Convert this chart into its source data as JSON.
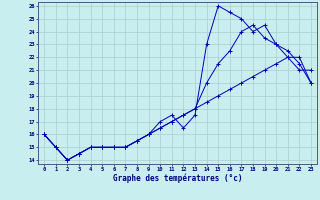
{
  "title": "Graphe des températures (°c)",
  "background_color": "#c8eef0",
  "grid_color": "#aacccc",
  "line_color": "#0000bb",
  "x_hours": [
    0,
    1,
    2,
    3,
    4,
    5,
    6,
    7,
    8,
    9,
    10,
    11,
    12,
    13,
    14,
    15,
    16,
    17,
    18,
    19,
    20,
    21,
    22,
    23
  ],
  "line1": [
    16,
    15,
    14,
    14.5,
    15,
    15,
    15,
    15,
    15.5,
    16.0,
    17.0,
    17.5,
    16.5,
    17.5,
    23.0,
    26.0,
    25.5,
    25.0,
    24.0,
    24.5,
    23.0,
    22.5,
    21.5,
    20.0
  ],
  "line2": [
    16,
    15,
    14,
    14.5,
    15,
    15,
    15,
    15,
    15.5,
    16.0,
    16.5,
    17.0,
    17.5,
    18.0,
    20.0,
    21.5,
    22.5,
    24.0,
    24.5,
    23.5,
    23.0,
    22.0,
    21.0,
    21.0
  ],
  "line3": [
    16,
    15,
    14,
    14.5,
    15,
    15,
    15,
    15,
    15.5,
    16.0,
    16.5,
    17.0,
    17.5,
    18.0,
    18.5,
    19.0,
    19.5,
    20.0,
    20.5,
    21.0,
    21.5,
    22.0,
    22.0,
    20.0
  ],
  "ylim_min": 14,
  "ylim_max": 26,
  "yticks": [
    14,
    15,
    16,
    17,
    18,
    19,
    20,
    21,
    22,
    23,
    24,
    25,
    26
  ]
}
